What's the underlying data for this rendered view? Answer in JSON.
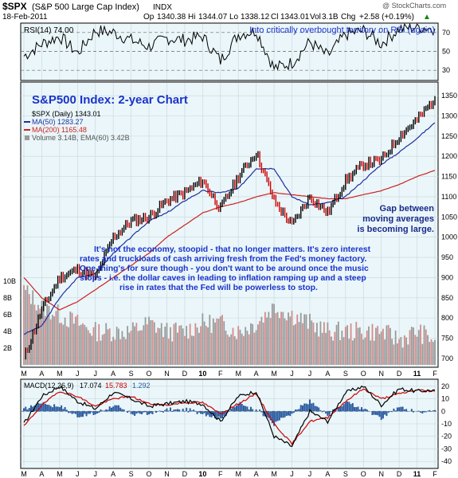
{
  "header": {
    "symbol": "$SPX",
    "name": "(S&P 500 Large Cap Index)",
    "exchange": "INDX",
    "watermark": "@ StockCharts.com",
    "date": "18-Feb-2011",
    "open_label": "Op",
    "open": "1340.38",
    "high_label": "Hi",
    "high": "1344.07",
    "low_label": "Lo",
    "low": "1338.12",
    "close_label": "Cl",
    "close": "1343.01",
    "vol_label": "Vol",
    "vol": "3.1B",
    "chg_label": "Chg",
    "chg": "+2.58 (+0.19%)",
    "chg_arrow": "▲"
  },
  "rsi_panel": {
    "legend": "RSI(14) 74.00",
    "annotation": "Into critically overbought territory on RSI (again)",
    "ticks": [
      "70",
      "50",
      "30"
    ]
  },
  "main_panel": {
    "title": "S&P500 Index: 2-year Chart",
    "legend_price": "$SPX (Daily) 1343.01",
    "legend_ma50": "MA(50) 1283.27",
    "legend_ma200": "MA(200) 1165.48",
    "legend_volume": "Volume 3.14B, EMA(60) 3.42B",
    "gap_note": [
      "Gap between",
      "moving averages",
      "is becoming large."
    ],
    "commentary": [
      "It's not the economy, stoopid - that no longer matters. It's zero interest",
      "rates and truckloads of cash arriving fresh from the Fed's money factory.",
      "One thing's for sure though - you don't want to be around once the music",
      "stops - i.e. the dollar caves in leading to inflation ramping up and a steep",
      "rise in rates that the Fed will be powerless to stop."
    ],
    "price_ticks": [
      "1350",
      "1300",
      "1250",
      "1200",
      "1150",
      "1100",
      "1050",
      "1000",
      "950",
      "900",
      "850",
      "800",
      "750",
      "700"
    ],
    "volume_ticks": [
      "10B",
      "8B",
      "6B",
      "4B",
      "2B"
    ]
  },
  "x_axis": {
    "labels": [
      "M",
      "A",
      "M",
      "J",
      "J",
      "A",
      "S",
      "O",
      "N",
      "D",
      "10",
      "F",
      "M",
      "A",
      "M",
      "J",
      "J",
      "A",
      "S",
      "O",
      "N",
      "D",
      "11",
      "F"
    ]
  },
  "macd_panel": {
    "legend_name": "MACD(12,26,9)",
    "macd": "17.074",
    "signal": "15.783",
    "hist": "1.292",
    "ticks": [
      "20",
      "10",
      "0",
      "-10",
      "-20",
      "-30",
      "-40"
    ]
  },
  "colors": {
    "panel_bg": "#eaf6f9",
    "price": "#000000",
    "up_bar": "#000000",
    "down_bar": "#cc0000",
    "ma50": "#1f2f9f",
    "ma200": "#cc2222",
    "annotation": "#1a33cc",
    "gap_text": "#1a2a8a",
    "volume_up": "#9a9a9a",
    "volume_down": "#d88a8a",
    "macd_line": "#000000",
    "signal_line": "#cc0000",
    "histogram": "#2a5aa0",
    "grid": "#c8d6da"
  },
  "chart_data": {
    "type": "line",
    "title": "S&P500 Index: 2-year Chart",
    "x_range": [
      "2009-03",
      "2011-02-18"
    ],
    "categories": [
      "Mar-09",
      "Apr-09",
      "May-09",
      "Jun-09",
      "Jul-09",
      "Aug-09",
      "Sep-09",
      "Oct-09",
      "Nov-09",
      "Dec-09",
      "Jan-10",
      "Feb-10",
      "Mar-10",
      "Apr-10",
      "May-10",
      "Jun-10",
      "Jul-10",
      "Aug-10",
      "Sep-10",
      "Oct-10",
      "Nov-10",
      "Dec-10",
      "Jan-11",
      "Feb-11"
    ],
    "ylim": [
      680,
      1370
    ],
    "series": [
      {
        "name": "$SPX (Daily)",
        "values": [
          700,
          820,
          900,
          920,
          900,
          1000,
          1040,
          1050,
          1090,
          1110,
          1140,
          1070,
          1150,
          1210,
          1090,
          1030,
          1100,
          1060,
          1140,
          1180,
          1190,
          1250,
          1290,
          1343
        ]
      },
      {
        "name": "MA(50)",
        "values": [
          760,
          780,
          850,
          900,
          910,
          960,
          1000,
          1040,
          1060,
          1090,
          1115,
          1110,
          1120,
          1170,
          1170,
          1100,
          1080,
          1085,
          1100,
          1140,
          1180,
          1210,
          1245,
          1283
        ]
      },
      {
        "name": "MA(200)",
        "values": [
          900,
          850,
          820,
          840,
          870,
          900,
          930,
          960,
          1000,
          1030,
          1060,
          1075,
          1085,
          1100,
          1110,
          1105,
          1100,
          1095,
          1095,
          1105,
          1115,
          1130,
          1150,
          1165
        ]
      }
    ],
    "volume_bars_B": [
      9,
      7,
      6,
      5,
      4,
      4,
      4,
      5,
      4,
      4,
      5,
      5,
      4,
      5,
      7,
      6,
      5,
      4,
      4,
      4,
      4,
      3,
      4,
      3
    ],
    "rsi": {
      "ylim": [
        20,
        80
      ],
      "values": [
        45,
        58,
        66,
        48,
        72,
        70,
        62,
        55,
        64,
        62,
        66,
        40,
        68,
        72,
        32,
        38,
        60,
        45,
        68,
        72,
        58,
        74,
        76,
        74
      ]
    },
    "macd": {
      "ylim": [
        -45,
        25
      ],
      "macd": [
        -10,
        12,
        20,
        8,
        2,
        15,
        10,
        4,
        6,
        8,
        6,
        -8,
        12,
        16,
        -20,
        -28,
        0,
        -8,
        15,
        20,
        5,
        18,
        16,
        17
      ],
      "signal": [
        -12,
        5,
        16,
        12,
        4,
        10,
        12,
        6,
        5,
        7,
        7,
        -2,
        6,
        14,
        -10,
        -26,
        -8,
        -5,
        8,
        18,
        10,
        14,
        17,
        16
      ]
    }
  }
}
